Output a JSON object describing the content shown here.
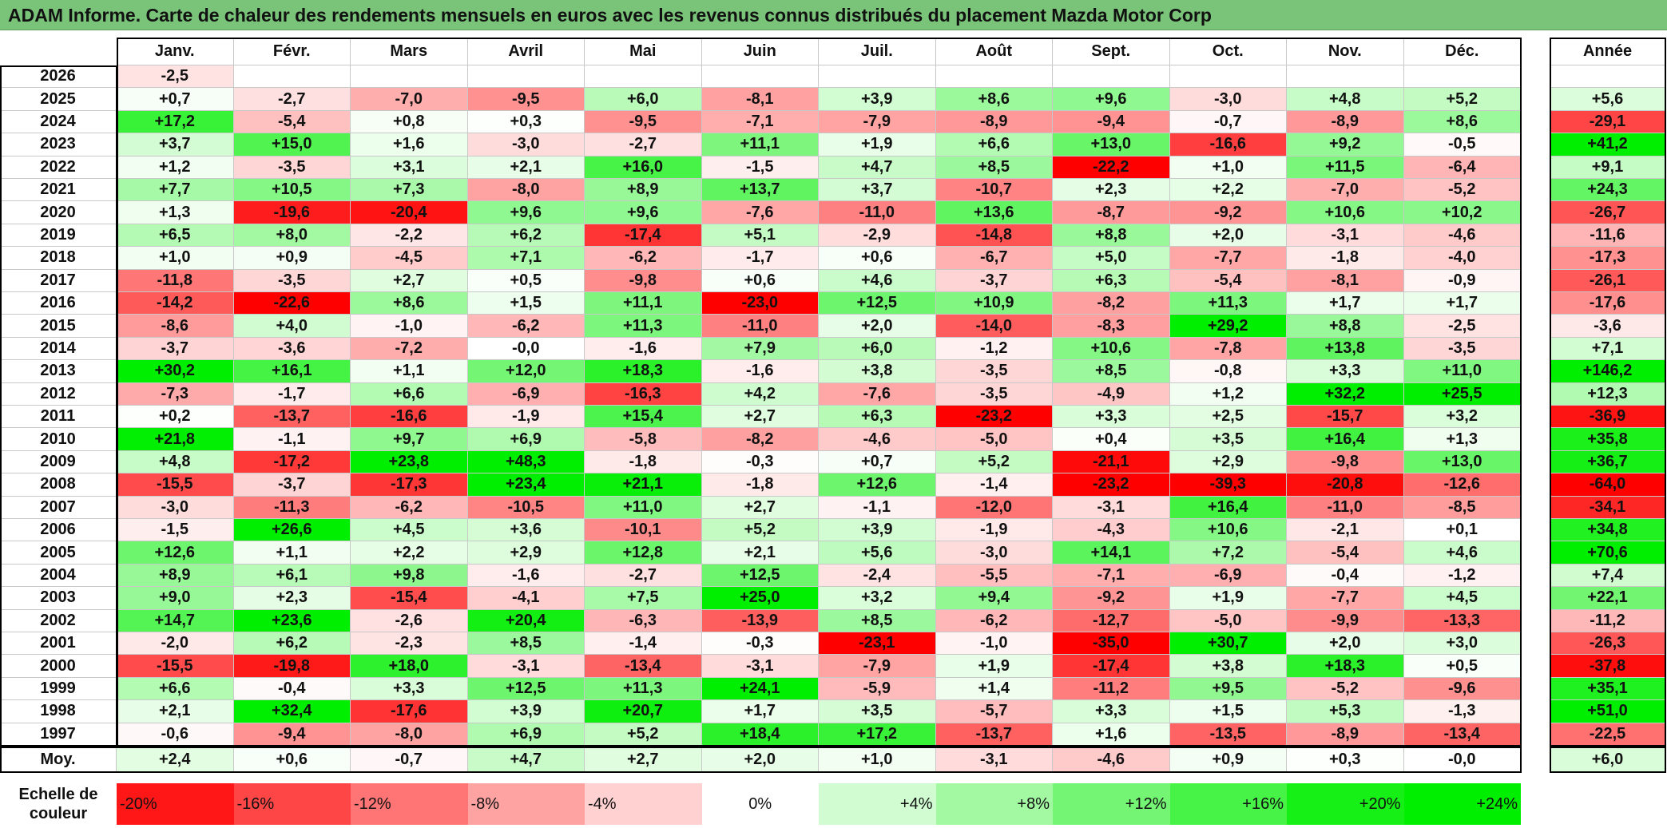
{
  "title": "ADAM Informe. Carte de chaleur des rendements mensuels en euros avec les revenus connus distribués du placement Mazda Motor Corp",
  "months": [
    "Janv.",
    "Févr.",
    "Mars",
    "Avril",
    "Mai",
    "Juin",
    "Juil.",
    "Août",
    "Sept.",
    "Oct.",
    "Nov.",
    "Déc."
  ],
  "year_header": "Année",
  "avg_label": "Moy.",
  "scale_label": "Echelle de couleur",
  "chart_data": {
    "type": "heatmap",
    "title": "ADAM Informe. Carte de chaleur des rendements mensuels en euros avec les revenus connus distribués du placement Mazda Motor Corp",
    "columns": [
      "Janv.",
      "Févr.",
      "Mars",
      "Avril",
      "Mai",
      "Juin",
      "Juil.",
      "Août",
      "Sept.",
      "Oct.",
      "Nov.",
      "Déc."
    ],
    "rows": [
      {
        "year": "2026",
        "values": [
          "-2,5",
          "",
          "",
          "",
          "",
          "",
          "",
          "",
          "",
          "",
          "",
          ""
        ],
        "annual": ""
      },
      {
        "year": "2025",
        "values": [
          "+0,7",
          "-2,7",
          "-7,0",
          "-9,5",
          "+6,0",
          "-8,1",
          "+3,9",
          "+8,6",
          "+9,6",
          "-3,0",
          "+4,8",
          "+5,2"
        ],
        "annual": "+5,6"
      },
      {
        "year": "2024",
        "values": [
          "+17,2",
          "-5,4",
          "+0,8",
          "+0,3",
          "-9,5",
          "-7,1",
          "-7,9",
          "-8,9",
          "-9,4",
          "-0,7",
          "-8,9",
          "+8,6"
        ],
        "annual": "-29,1"
      },
      {
        "year": "2023",
        "values": [
          "+3,7",
          "+15,0",
          "+1,6",
          "-3,0",
          "-2,7",
          "+11,1",
          "+1,9",
          "+6,6",
          "+13,0",
          "-16,6",
          "+9,2",
          "-0,5"
        ],
        "annual": "+41,2"
      },
      {
        "year": "2022",
        "values": [
          "+1,2",
          "-3,5",
          "+3,1",
          "+2,1",
          "+16,0",
          "-1,5",
          "+4,7",
          "+8,5",
          "-22,2",
          "+1,0",
          "+11,5",
          "-6,4"
        ],
        "annual": "+9,1"
      },
      {
        "year": "2021",
        "values": [
          "+7,7",
          "+10,5",
          "+7,3",
          "-8,0",
          "+8,9",
          "+13,7",
          "+3,7",
          "-10,7",
          "+2,3",
          "+2,2",
          "-7,0",
          "-5,2"
        ],
        "annual": "+24,3"
      },
      {
        "year": "2020",
        "values": [
          "+1,3",
          "-19,6",
          "-20,4",
          "+9,6",
          "+9,6",
          "-7,6",
          "-11,0",
          "+13,6",
          "-8,7",
          "-9,2",
          "+10,6",
          "+10,2"
        ],
        "annual": "-26,7"
      },
      {
        "year": "2019",
        "values": [
          "+6,5",
          "+8,0",
          "-2,2",
          "+6,2",
          "-17,4",
          "+5,1",
          "-2,9",
          "-14,8",
          "+8,8",
          "+2,0",
          "-3,1",
          "-4,6"
        ],
        "annual": "-11,6"
      },
      {
        "year": "2018",
        "values": [
          "+1,0",
          "+0,9",
          "-4,5",
          "+7,1",
          "-6,2",
          "-1,7",
          "+0,6",
          "-6,7",
          "+5,0",
          "-7,7",
          "-1,8",
          "-4,0"
        ],
        "annual": "-17,3"
      },
      {
        "year": "2017",
        "values": [
          "-11,8",
          "-3,5",
          "+2,7",
          "+0,5",
          "-9,8",
          "+0,6",
          "+4,6",
          "-3,7",
          "+6,3",
          "-5,4",
          "-8,1",
          "-0,9"
        ],
        "annual": "-26,1"
      },
      {
        "year": "2016",
        "values": [
          "-14,2",
          "-22,6",
          "+8,6",
          "+1,5",
          "+11,1",
          "-23,0",
          "+12,5",
          "+10,9",
          "-8,2",
          "+11,3",
          "+1,7",
          "+1,7"
        ],
        "annual": "-17,6"
      },
      {
        "year": "2015",
        "values": [
          "-8,6",
          "+4,0",
          "-1,0",
          "-6,2",
          "+11,3",
          "-11,0",
          "+2,0",
          "-14,0",
          "-8,3",
          "+29,2",
          "+8,8",
          "-2,5"
        ],
        "annual": "-3,6"
      },
      {
        "year": "2014",
        "values": [
          "-3,7",
          "-3,6",
          "-7,2",
          "-0,0",
          "-1,6",
          "+7,9",
          "+6,0",
          "-1,2",
          "+10,6",
          "-7,8",
          "+13,8",
          "-3,5"
        ],
        "annual": "+7,1"
      },
      {
        "year": "2013",
        "values": [
          "+30,2",
          "+16,1",
          "+1,1",
          "+12,0",
          "+18,3",
          "-1,6",
          "+3,8",
          "-3,5",
          "+8,5",
          "-0,8",
          "+3,3",
          "+11,0"
        ],
        "annual": "+146,2"
      },
      {
        "year": "2012",
        "values": [
          "-7,3",
          "-1,7",
          "+6,6",
          "-6,9",
          "-16,3",
          "+4,2",
          "-7,6",
          "-3,5",
          "-4,9",
          "+1,2",
          "+32,2",
          "+25,5"
        ],
        "annual": "+12,3"
      },
      {
        "year": "2011",
        "values": [
          "+0,2",
          "-13,7",
          "-16,6",
          "-1,9",
          "+15,4",
          "+2,7",
          "+6,3",
          "-23,2",
          "+3,3",
          "+2,5",
          "-15,7",
          "+3,2"
        ],
        "annual": "-36,9"
      },
      {
        "year": "2010",
        "values": [
          "+21,8",
          "-1,1",
          "+9,7",
          "+6,9",
          "-5,8",
          "-8,2",
          "-4,6",
          "-5,0",
          "+0,4",
          "+3,5",
          "+16,4",
          "+1,3"
        ],
        "annual": "+35,8"
      },
      {
        "year": "2009",
        "values": [
          "+4,8",
          "-17,2",
          "+23,8",
          "+48,3",
          "-1,8",
          "-0,3",
          "+0,7",
          "+5,2",
          "-21,1",
          "+2,9",
          "-9,8",
          "+13,0"
        ],
        "annual": "+36,7"
      },
      {
        "year": "2008",
        "values": [
          "-15,5",
          "-3,7",
          "-17,3",
          "+23,4",
          "+21,1",
          "-1,8",
          "+12,6",
          "-1,4",
          "-23,2",
          "-39,3",
          "-20,8",
          "-12,6"
        ],
        "annual": "-64,0"
      },
      {
        "year": "2007",
        "values": [
          "-3,0",
          "-11,3",
          "-6,2",
          "-10,5",
          "+11,0",
          "+2,7",
          "-1,1",
          "-12,0",
          "-3,1",
          "+16,4",
          "-11,0",
          "-8,5"
        ],
        "annual": "-34,1"
      },
      {
        "year": "2006",
        "values": [
          "-1,5",
          "+26,6",
          "+4,5",
          "+3,6",
          "-10,1",
          "+5,2",
          "+3,9",
          "-1,9",
          "-4,3",
          "+10,6",
          "-2,1",
          "+0,1"
        ],
        "annual": "+34,8"
      },
      {
        "year": "2005",
        "values": [
          "+12,6",
          "+1,1",
          "+2,2",
          "+2,9",
          "+12,8",
          "+2,1",
          "+5,6",
          "-3,0",
          "+14,1",
          "+7,2",
          "-5,4",
          "+4,6"
        ],
        "annual": "+70,6"
      },
      {
        "year": "2004",
        "values": [
          "+8,9",
          "+6,1",
          "+9,8",
          "-1,6",
          "-2,7",
          "+12,5",
          "-2,4",
          "-5,5",
          "-7,1",
          "-6,9",
          "-0,4",
          "-1,2"
        ],
        "annual": "+7,4"
      },
      {
        "year": "2003",
        "values": [
          "+9,0",
          "+2,3",
          "-15,4",
          "-4,1",
          "+7,5",
          "+25,0",
          "+3,2",
          "+9,4",
          "-9,2",
          "+1,9",
          "-7,7",
          "+4,5"
        ],
        "annual": "+22,1"
      },
      {
        "year": "2002",
        "values": [
          "+14,7",
          "+23,6",
          "-2,6",
          "+20,4",
          "-6,3",
          "-13,9",
          "+8,5",
          "-6,2",
          "-12,7",
          "-5,0",
          "-9,9",
          "-13,3"
        ],
        "annual": "-11,2"
      },
      {
        "year": "2001",
        "values": [
          "-2,0",
          "+6,2",
          "-2,3",
          "+8,5",
          "-1,4",
          "-0,3",
          "-23,1",
          "-1,0",
          "-35,0",
          "+30,7",
          "+2,0",
          "+3,0"
        ],
        "annual": "-26,3"
      },
      {
        "year": "2000",
        "values": [
          "-15,5",
          "-19,8",
          "+18,0",
          "-3,1",
          "-13,4",
          "-3,1",
          "-7,9",
          "+1,9",
          "-17,4",
          "+3,8",
          "+18,3",
          "+0,5"
        ],
        "annual": "-37,8"
      },
      {
        "year": "1999",
        "values": [
          "+6,6",
          "-0,4",
          "+3,3",
          "+12,5",
          "+11,3",
          "+24,1",
          "-5,9",
          "+1,4",
          "-11,2",
          "+9,5",
          "-5,2",
          "-9,6"
        ],
        "annual": "+35,1"
      },
      {
        "year": "1998",
        "values": [
          "+2,1",
          "+32,4",
          "-17,6",
          "+3,9",
          "+20,7",
          "+1,7",
          "+3,5",
          "-5,7",
          "+3,3",
          "+1,5",
          "+5,3",
          "-1,3"
        ],
        "annual": "+51,0"
      },
      {
        "year": "1997",
        "values": [
          "-0,6",
          "-9,4",
          "-8,0",
          "+6,9",
          "+5,2",
          "+18,4",
          "+17,2",
          "-13,7",
          "+1,6",
          "-13,5",
          "-8,9",
          "-13,4"
        ],
        "annual": "-22,5"
      }
    ],
    "average": {
      "label": "Moy.",
      "values": [
        "+2,4",
        "+0,6",
        "-0,7",
        "+4,7",
        "+2,7",
        "+2,0",
        "+1,0",
        "-3,1",
        "-4,6",
        "+0,9",
        "+0,3",
        "-0,0"
      ],
      "annual": "+6,0"
    },
    "color_scale": [
      "-20%",
      "-16%",
      "-12%",
      "-8%",
      "-4%",
      "0%",
      "+4%",
      "+8%",
      "+12%",
      "+16%",
      "+20%",
      "+24%"
    ],
    "colors": {
      "negative_max": "#ff0000",
      "neutral": "#ffffff",
      "positive_max": "#00ee00"
    }
  }
}
